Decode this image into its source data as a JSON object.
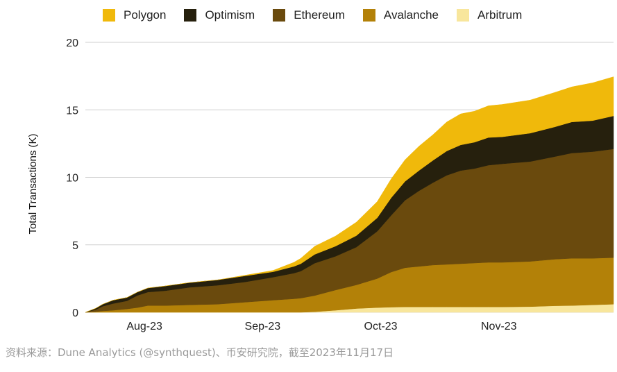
{
  "chart_data": {
    "type": "area",
    "stacked": true,
    "title": "",
    "xlabel": "",
    "ylabel": "Total Transactions (K)",
    "ylim": [
      0,
      20
    ],
    "yticks": [
      0,
      5,
      10,
      15,
      20
    ],
    "xticks": [
      "Aug-23",
      "Sep-23",
      "Oct-23",
      "Nov-23"
    ],
    "xtick_day": [
      17,
      51,
      85,
      119
    ],
    "legend_position": "top",
    "grid": true,
    "x": [
      0,
      3,
      5,
      8,
      12,
      15,
      18,
      23,
      30,
      38,
      46,
      54,
      60,
      62,
      66,
      72,
      78,
      84,
      88,
      92,
      96,
      100,
      104,
      108,
      112,
      116,
      120,
      128,
      135,
      140,
      146,
      152
    ],
    "series": [
      {
        "name": "Arbitrum",
        "color": "#f8e69c",
        "values": [
          0,
          0,
          0,
          0,
          0,
          0,
          0,
          0,
          0,
          0,
          0,
          0,
          0,
          0,
          0.04,
          0.15,
          0.28,
          0.35,
          0.38,
          0.4,
          0.4,
          0.4,
          0.4,
          0.4,
          0.4,
          0.4,
          0.4,
          0.42,
          0.48,
          0.5,
          0.55,
          0.6
        ]
      },
      {
        "name": "Avalanche",
        "color": "#b38108",
        "values": [
          0,
          0.05,
          0.1,
          0.15,
          0.25,
          0.35,
          0.5,
          0.5,
          0.55,
          0.6,
          0.75,
          0.9,
          1.0,
          1.05,
          1.2,
          1.5,
          1.75,
          2.15,
          2.6,
          2.9,
          3.0,
          3.1,
          3.15,
          3.2,
          3.25,
          3.3,
          3.3,
          3.35,
          3.45,
          3.5,
          3.45,
          3.45
        ]
      },
      {
        "name": "Ethereum",
        "color": "#6a4a0d",
        "values": [
          0,
          0.15,
          0.35,
          0.5,
          0.6,
          0.9,
          1.0,
          1.1,
          1.3,
          1.4,
          1.5,
          1.7,
          1.9,
          2.0,
          2.4,
          2.5,
          2.8,
          3.5,
          4.2,
          5.0,
          5.6,
          6.1,
          6.6,
          6.9,
          7.0,
          7.2,
          7.3,
          7.4,
          7.6,
          7.8,
          7.9,
          8.05
        ]
      },
      {
        "name": "Optimism",
        "color": "#26200d",
        "values": [
          0,
          0.1,
          0.15,
          0.25,
          0.25,
          0.25,
          0.3,
          0.35,
          0.35,
          0.4,
          0.45,
          0.4,
          0.5,
          0.55,
          0.65,
          0.75,
          0.85,
          1.0,
          1.3,
          1.4,
          1.5,
          1.65,
          1.8,
          1.9,
          1.95,
          2.05,
          2.0,
          2.1,
          2.2,
          2.3,
          2.3,
          2.45
        ]
      },
      {
        "name": "Polygon",
        "color": "#f0b90b",
        "values": [
          0,
          0,
          0,
          0,
          0,
          0,
          0,
          0,
          0,
          0,
          0.05,
          0.1,
          0.3,
          0.4,
          0.6,
          0.75,
          1.0,
          1.2,
          1.4,
          1.6,
          1.8,
          1.9,
          2.15,
          2.3,
          2.3,
          2.35,
          2.4,
          2.45,
          2.55,
          2.6,
          2.8,
          2.9
        ]
      }
    ],
    "x_max": 152
  },
  "legend": [
    {
      "label": "Polygon",
      "color": "#f0b90b"
    },
    {
      "label": "Optimism",
      "color": "#26200d"
    },
    {
      "label": "Ethereum",
      "color": "#6a4a0d"
    },
    {
      "label": "Avalanche",
      "color": "#b38108"
    },
    {
      "label": "Arbitrum",
      "color": "#f8e69c"
    }
  ],
  "source_text": "资料来源：Dune Analytics (@synthquest)、币安研究院，截至2023年11月17日"
}
